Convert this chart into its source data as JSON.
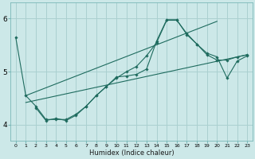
{
  "xlabel": "Humidex (Indice chaleur)",
  "bg_color": "#cce8e8",
  "line_color": "#1e6b5e",
  "grid_color": "#aad0d0",
  "xlim": [
    -0.5,
    23.5
  ],
  "ylim": [
    3.7,
    6.3
  ],
  "xticks": [
    0,
    1,
    2,
    3,
    4,
    5,
    6,
    7,
    8,
    9,
    10,
    11,
    12,
    13,
    14,
    15,
    16,
    17,
    18,
    19,
    20,
    21,
    22,
    23
  ],
  "yticks": [
    4,
    5,
    6
  ],
  "series": [
    {
      "x": [
        0,
        1,
        2,
        3,
        4,
        5,
        6,
        7,
        8,
        9,
        10,
        11,
        12,
        13,
        14,
        15,
        16,
        17,
        18,
        19,
        20,
        21,
        22,
        23
      ],
      "y": [
        5.65,
        4.55,
        4.35,
        4.1,
        4.1,
        4.1,
        4.2,
        4.35,
        4.55,
        4.72,
        4.88,
        5.0,
        5.1,
        5.3,
        5.55,
        5.97,
        5.97,
        5.72,
        5.52,
        5.35,
        5.28,
        4.88,
        5.2,
        5.3
      ],
      "marker": true
    },
    {
      "x": [
        1,
        23
      ],
      "y": [
        4.42,
        5.32
      ],
      "marker": false
    },
    {
      "x": [
        1,
        20
      ],
      "y": [
        4.55,
        5.95
      ],
      "marker": false
    },
    {
      "x": [
        2,
        3,
        4,
        5,
        6,
        7,
        8,
        9,
        10,
        11,
        12,
        13,
        14,
        15,
        16,
        17,
        18,
        19,
        20,
        21,
        22,
        23
      ],
      "y": [
        4.32,
        4.08,
        4.12,
        4.08,
        4.18,
        4.35,
        4.55,
        4.72,
        4.9,
        4.92,
        4.95,
        5.05,
        5.58,
        5.98,
        5.98,
        5.7,
        5.52,
        5.32,
        5.22,
        5.22,
        5.28,
        5.32
      ],
      "marker": true
    }
  ]
}
